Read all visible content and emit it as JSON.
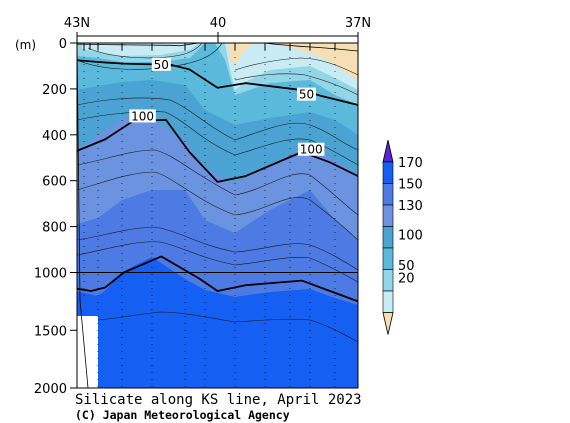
{
  "chart_data": {
    "type": "contour",
    "title": "Silicate along KS line, April 2023",
    "credit": "(C) Japan Meteorological Agency",
    "y_unit_label": "(m)",
    "x_axis": {
      "tick_labels": [
        {
          "label": "43N",
          "lat": 43
        },
        {
          "label": "40",
          "lat": 40
        },
        {
          "label": "37N",
          "lat": 37
        }
      ],
      "range": [
        43,
        37
      ]
    },
    "y_axis": {
      "segments": [
        {
          "range": [
            0,
            1000
          ],
          "ticks": [
            0,
            200,
            400,
            600,
            800,
            1000
          ]
        },
        {
          "range": [
            1000,
            2000
          ],
          "ticks": [
            1500,
            2000
          ]
        }
      ],
      "tick_labels": [
        "0",
        "200",
        "400",
        "600",
        "800",
        "1000",
        "1500",
        "2000"
      ]
    },
    "colorbar": {
      "levels": [
        20,
        50,
        100,
        130,
        150,
        170
      ],
      "labels": [
        "170",
        "150",
        "130",
        "100",
        "50",
        "20"
      ],
      "colors": [
        "#f7dfb5",
        "#c8ebf4",
        "#92d6e8",
        "#5bbadb",
        "#4aa3d2",
        "#6c93e0",
        "#4d7ae3",
        "#155ff2",
        "#5a23d8"
      ]
    },
    "contour_labels": [
      {
        "text": "50",
        "lat": 41.2,
        "depth": 95
      },
      {
        "text": "50",
        "lat": 38.1,
        "depth": 225
      },
      {
        "text": "100",
        "lat": 41.6,
        "depth": 320
      },
      {
        "text": "100",
        "lat": 38.0,
        "depth": 465
      }
    ],
    "contours": [
      {
        "level": 20,
        "bold": false,
        "points": [
          [
            43,
            5
          ],
          [
            42.4,
            7
          ],
          [
            42.0,
            8
          ],
          [
            41.0,
            10
          ],
          [
            40.8,
            12
          ],
          [
            40.4,
            0
          ]
        ]
      },
      {
        "level": 20,
        "bold": false,
        "points": [
          [
            39.0,
            0
          ],
          [
            38.8,
            5
          ],
          [
            38.2,
            15
          ],
          [
            37.8,
            20
          ],
          [
            37.5,
            25
          ],
          [
            37,
            35
          ]
        ]
      },
      {
        "level": 50,
        "bold": true,
        "points": [
          [
            43,
            75
          ],
          [
            42.4,
            85
          ],
          [
            42.0,
            90
          ],
          [
            41.0,
            95
          ],
          [
            40.6,
            115
          ],
          [
            40.0,
            195
          ],
          [
            39.4,
            175
          ],
          [
            38.2,
            205
          ],
          [
            37.8,
            230
          ],
          [
            37,
            270
          ]
        ]
      },
      {
        "level": 100,
        "bold": true,
        "points": [
          [
            43,
            470
          ],
          [
            42.4,
            420
          ],
          [
            41.8,
            340
          ],
          [
            41.1,
            335
          ],
          [
            40.6,
            475
          ],
          [
            40.0,
            605
          ],
          [
            39.4,
            580
          ],
          [
            38.2,
            475
          ],
          [
            37.6,
            520
          ],
          [
            37,
            580
          ]
        ]
      },
      {
        "level": 150,
        "bold": true,
        "points": [
          [
            43,
            1140
          ],
          [
            42.7,
            1160
          ],
          [
            42.4,
            1130
          ],
          [
            42.0,
            1000
          ],
          [
            41.2,
            930
          ],
          [
            40.4,
            1050
          ],
          [
            40.0,
            1160
          ],
          [
            39.4,
            1110
          ],
          [
            38.2,
            1070
          ],
          [
            37.6,
            1160
          ],
          [
            37,
            1250
          ]
        ]
      }
    ],
    "grid_line_depth": 1000
  }
}
